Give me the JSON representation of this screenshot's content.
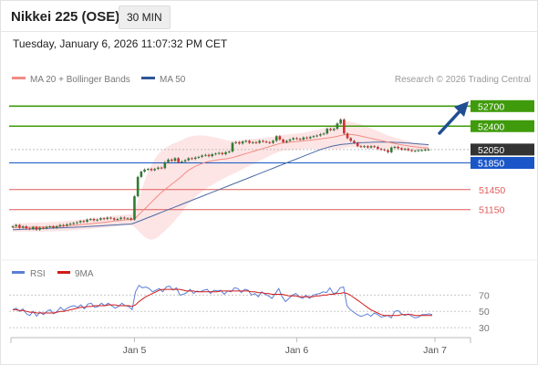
{
  "header": {
    "title": "Nikkei 225 (OSE)",
    "interval": "30 MIN",
    "datetime": "Tuesday, January 6, 2026 11:07:32 PM CET"
  },
  "legend": {
    "ma20": "MA 20 + Bollinger Bands",
    "ma50": "MA 50",
    "credit": "Research © 2026 Trading Central",
    "rsi": "RSI",
    "rsi_ma": "9MA"
  },
  "colors": {
    "candle_up": "#2e7d32",
    "candle_down": "#d32f2f",
    "ma20": "#f28b82",
    "ma50": "#4a6aa5",
    "bollinger_fill": "#fde0e0",
    "target_green": "#3f9b0b",
    "pivot_blue": "#1a56c8",
    "support_red": "#e05a5a",
    "current_price": "#333333",
    "arrow": "#1f4e91",
    "rsi": "#5b7fd6",
    "rsi_ma": "#d11a1a"
  },
  "chart_data": [
    {
      "type": "candlestick",
      "ylim": [
        50600,
        52950
      ],
      "x_tick_labels": [
        "Jan 5",
        "Jan 6",
        "Jan 7"
      ],
      "levels": [
        {
          "value": 52700,
          "label": "52700",
          "kind": "target"
        },
        {
          "value": 52400,
          "label": "52400",
          "kind": "target"
        },
        {
          "value": 52050,
          "label": "52050",
          "kind": "current"
        },
        {
          "value": 51850,
          "label": "51850",
          "kind": "pivot"
        },
        {
          "value": 51450,
          "label": "51450",
          "kind": "support"
        },
        {
          "value": 51150,
          "label": "51150",
          "kind": "support"
        }
      ],
      "series": [
        {
          "name": "MA 20 + Bollinger Bands"
        },
        {
          "name": "MA 50"
        }
      ],
      "close": [
        50900,
        50920,
        50880,
        50900,
        50870,
        50860,
        50890,
        50850,
        50880,
        50870,
        50890,
        50900,
        50880,
        50900,
        50920,
        50910,
        50930,
        50940,
        50950,
        50960,
        50980,
        50970,
        51000,
        51010,
        50990,
        51000,
        51020,
        51010,
        51030,
        51020,
        51000,
        51010,
        51030,
        51020,
        51020,
        51000,
        51350,
        51640,
        51720,
        51750,
        51760,
        51740,
        51760,
        51780,
        51770,
        51860,
        51900,
        51880,
        51920,
        51860,
        51870,
        51890,
        51920,
        51910,
        51930,
        51940,
        51960,
        51970,
        51950,
        51980,
        51990,
        52000,
        51980,
        52010,
        52020,
        52150,
        52160,
        52140,
        52170,
        52180,
        52150,
        52160,
        52150,
        52180,
        52170,
        52160,
        52150,
        52180,
        52250,
        52200,
        52160,
        52180,
        52200,
        52220,
        52210,
        52200,
        52230,
        52220,
        52240,
        52250,
        52260,
        52280,
        52290,
        52360,
        52340,
        52360,
        52440,
        52500,
        52290,
        52220,
        52180,
        52150,
        52100,
        52090,
        52100,
        52080,
        52100,
        52090,
        52060,
        52050,
        52040,
        52010,
        52080,
        52090,
        52070,
        52050,
        52060,
        52040,
        52030,
        52030,
        52040,
        52040,
        52050,
        52050
      ],
      "ma20": [
        50880,
        50882,
        50884,
        50885,
        50886,
        50887,
        50888,
        50889,
        50890,
        50891,
        50892,
        50894,
        50896,
        50898,
        50900,
        50904,
        50908,
        50912,
        50916,
        50920,
        50925,
        50930,
        50935,
        50940,
        50945,
        50950,
        50955,
        50960,
        50966,
        50972,
        50978,
        50984,
        50990,
        50995,
        51000,
        51000,
        51010,
        51060,
        51110,
        51160,
        51210,
        51260,
        51310,
        51360,
        51410,
        51450,
        51490,
        51530,
        51570,
        51610,
        51650,
        51700,
        51740,
        51770,
        51800,
        51820,
        51840,
        51860,
        51870,
        51880,
        51890,
        51900,
        51905,
        51910,
        51920,
        51930,
        51945,
        51960,
        51975,
        51990,
        52005,
        52020,
        52035,
        52050,
        52065,
        52080,
        52095,
        52110,
        52125,
        52140,
        52150,
        52155,
        52160,
        52165,
        52170,
        52175,
        52180,
        52185,
        52190,
        52196,
        52202,
        52208,
        52215,
        52222,
        52230,
        52238,
        52248,
        52260,
        52270,
        52275,
        52275,
        52270,
        52262,
        52252,
        52240,
        52228,
        52216,
        52206,
        52196,
        52184,
        52172,
        52160,
        52150,
        52140,
        52130,
        52120,
        52112,
        52104,
        52096,
        52090,
        52085,
        52080,
        52076,
        52072
      ],
      "ma50": [
        50850,
        50852,
        50854,
        50856,
        50858,
        50860,
        50862,
        50864,
        50866,
        50868,
        50870,
        50872,
        50874,
        50876,
        50878,
        50880,
        50882,
        50884,
        50886,
        50888,
        50890,
        50893,
        50896,
        50899,
        50902,
        50905,
        50908,
        50911,
        50914,
        50917,
        50920,
        50923,
        50926,
        50929,
        50932,
        50935,
        50950,
        50970,
        50990,
        51010,
        51030,
        51050,
        51070,
        51090,
        51110,
        51130,
        51150,
        51170,
        51190,
        51210,
        51230,
        51250,
        51270,
        51290,
        51310,
        51330,
        51350,
        51370,
        51390,
        51410,
        51430,
        51450,
        51470,
        51490,
        51510,
        51530,
        51550,
        51570,
        51590,
        51610,
        51630,
        51650,
        51670,
        51690,
        51710,
        51730,
        51750,
        51770,
        51790,
        51810,
        51830,
        51850,
        51870,
        51890,
        51910,
        51930,
        51950,
        51970,
        51990,
        52010,
        52030,
        52050,
        52065,
        52080,
        52095,
        52105,
        52115,
        52125,
        52130,
        52135,
        52140,
        52145,
        52150,
        52152,
        52154,
        52156,
        52158,
        52160,
        52160,
        52160,
        52160,
        52160,
        52160,
        52158,
        52156,
        52154,
        52150,
        52146,
        52142,
        52138,
        52134,
        52130,
        52126,
        52122
      ],
      "band_width": [
        60,
        60,
        62,
        62,
        64,
        64,
        66,
        66,
        68,
        68,
        70,
        70,
        70,
        72,
        72,
        72,
        74,
        74,
        74,
        76,
        76,
        76,
        78,
        78,
        78,
        80,
        80,
        80,
        80,
        80,
        80,
        80,
        80,
        80,
        80,
        80,
        120,
        220,
        320,
        420,
        500,
        560,
        600,
        620,
        620,
        620,
        610,
        600,
        580,
        560,
        540,
        520,
        500,
        480,
        460,
        440,
        420,
        400,
        380,
        360,
        340,
        320,
        300,
        280,
        260,
        250,
        240,
        230,
        220,
        210,
        200,
        190,
        180,
        170,
        160,
        150,
        140,
        130,
        125,
        120,
        120,
        120,
        120,
        120,
        120,
        120,
        120,
        125,
        130,
        135,
        140,
        145,
        150,
        160,
        170,
        180,
        190,
        200,
        200,
        195,
        190,
        185,
        180,
        175,
        170,
        160,
        150,
        140,
        130,
        120,
        110,
        100,
        95,
        90,
        85,
        80,
        75,
        70,
        65,
        60,
        55,
        50,
        45,
        45
      ]
    },
    {
      "type": "line",
      "title": "RSI",
      "ylim": [
        20,
        85
      ],
      "y_ticks": [
        70,
        50,
        30
      ],
      "series": [
        {
          "name": "RSI",
          "values": [
            52,
            54,
            50,
            53,
            47,
            45,
            50,
            44,
            49,
            46,
            50,
            52,
            47,
            50,
            55,
            51,
            54,
            56,
            57,
            55,
            58,
            53,
            59,
            60,
            55,
            56,
            60,
            57,
            60,
            57,
            54,
            56,
            60,
            57,
            56,
            52,
            74,
            82,
            79,
            80,
            78,
            74,
            76,
            78,
            74,
            80,
            81,
            76,
            79,
            70,
            71,
            73,
            77,
            72,
            75,
            74,
            76,
            77,
            72,
            76,
            75,
            76,
            71,
            75,
            74,
            79,
            78,
            73,
            77,
            76,
            70,
            72,
            68,
            74,
            71,
            69,
            66,
            72,
            78,
            68,
            62,
            66,
            70,
            72,
            68,
            66,
            70,
            66,
            70,
            71,
            72,
            74,
            73,
            79,
            72,
            73,
            79,
            80,
            57,
            52,
            49,
            46,
            44,
            45,
            47,
            44,
            48,
            46,
            43,
            44,
            45,
            42,
            50,
            51,
            47,
            45,
            47,
            44,
            42,
            43,
            46,
            46,
            47,
            46
          ]
        },
        {
          "name": "9MA",
          "values": [
            52,
            52,
            51,
            51,
            50,
            49,
            49,
            48,
            48,
            48,
            48,
            48,
            48,
            49,
            50,
            50,
            51,
            52,
            53,
            54,
            55,
            55,
            56,
            56,
            57,
            57,
            57,
            57,
            58,
            58,
            58,
            57,
            57,
            57,
            57,
            56,
            58,
            62,
            65,
            68,
            70,
            72,
            74,
            76,
            77,
            77,
            77,
            77,
            77,
            77,
            76,
            75,
            75,
            75,
            74,
            74,
            74,
            74,
            74,
            74,
            74,
            75,
            75,
            75,
            75,
            75,
            75,
            75,
            75,
            75,
            74,
            74,
            73,
            73,
            72,
            72,
            71,
            71,
            71,
            71,
            70,
            69,
            69,
            69,
            68,
            68,
            68,
            68,
            68,
            69,
            69,
            70,
            70,
            71,
            71,
            72,
            72,
            73,
            72,
            70,
            67,
            64,
            61,
            58,
            55,
            52,
            50,
            48,
            46,
            45,
            45,
            45,
            45,
            45,
            46,
            46,
            46,
            46,
            45,
            45,
            45,
            45,
            45,
            45
          ]
        }
      ]
    }
  ]
}
